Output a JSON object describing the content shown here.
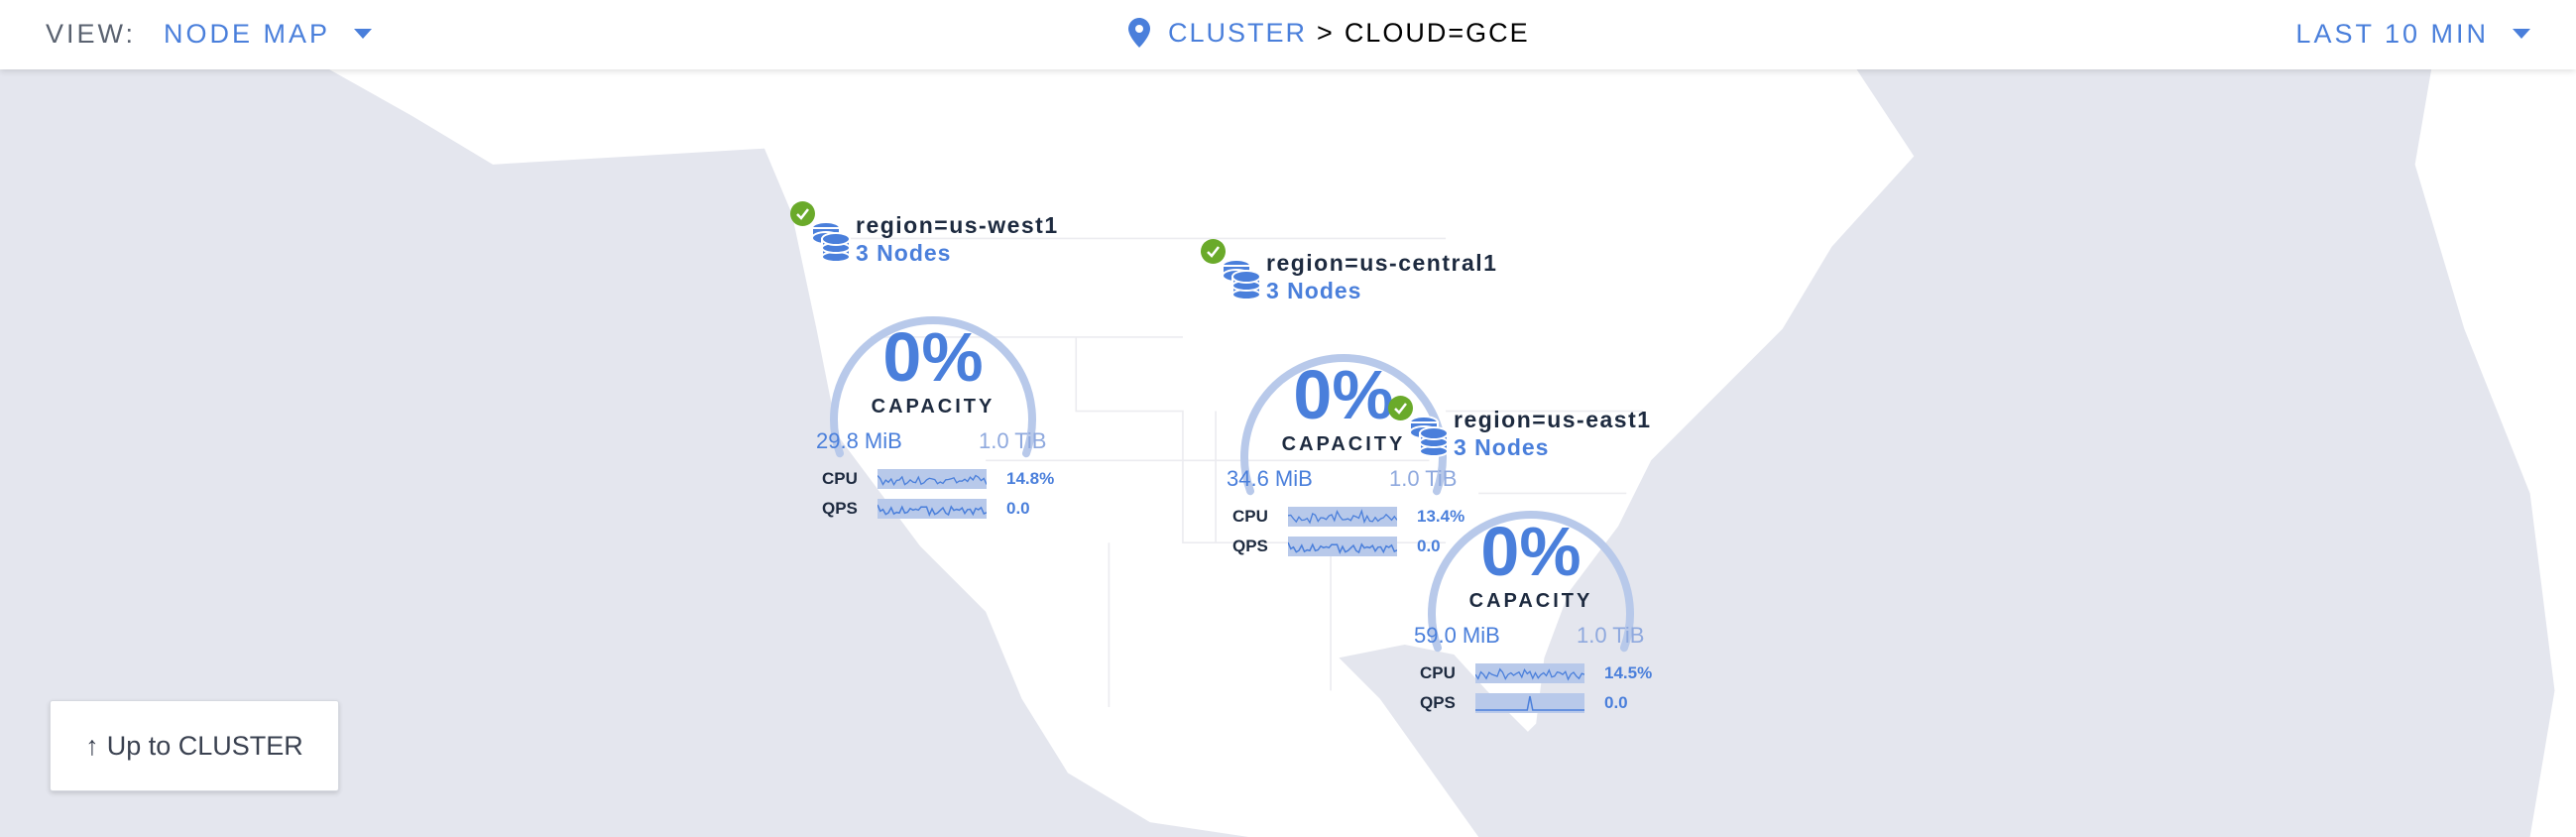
{
  "header": {
    "view_label": "VIEW:",
    "view_value": "NODE MAP",
    "breadcrumb": {
      "icon": "map-pin-icon",
      "parent": "CLUSTER",
      "separator": ">",
      "current": "CLOUD=GCE"
    },
    "time_range": "LAST 10 MIN"
  },
  "colors": {
    "accent": "#4a7fdb",
    "healthy": "#6aaa2a",
    "gauge": "#b8c9ea",
    "land": "#ffffff",
    "water": "#e4e6ee"
  },
  "regions": [
    {
      "name": "region=us-west1",
      "nodes": "3 Nodes",
      "status": "healthy",
      "capacity_pct": "0%",
      "capacity_value": 0,
      "capacity_label": "CAPACITY",
      "used": "29.8 MiB",
      "total": "1.0 TiB",
      "cpu_label": "CPU",
      "cpu": "14.8%",
      "qps_label": "QPS",
      "qps": "0.0"
    },
    {
      "name": "region=us-central1",
      "nodes": "3 Nodes",
      "status": "healthy",
      "capacity_pct": "0%",
      "capacity_value": 0,
      "capacity_label": "CAPACITY",
      "used": "34.6 MiB",
      "total": "1.0 TiB",
      "cpu_label": "CPU",
      "cpu": "13.4%",
      "qps_label": "QPS",
      "qps": "0.0"
    },
    {
      "name": "region=us-east1",
      "nodes": "3 Nodes",
      "status": "healthy",
      "capacity_pct": "0%",
      "capacity_value": 0,
      "capacity_label": "CAPACITY",
      "used": "59.0 MiB",
      "total": "1.0 TiB",
      "cpu_label": "CPU",
      "cpu": "14.5%",
      "qps_label": "QPS",
      "qps": "0.0"
    }
  ],
  "up_button": {
    "icon": "arrow-up-icon",
    "label": "Up to CLUSTER"
  }
}
